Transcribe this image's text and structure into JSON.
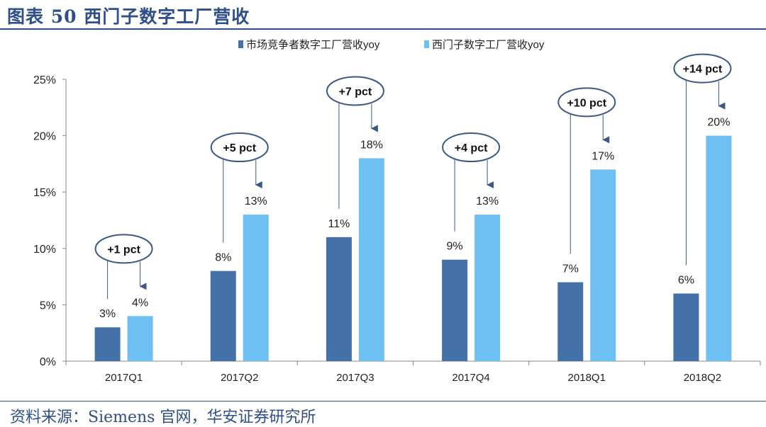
{
  "header": {
    "title": "图表 50  西门子数字工厂营收"
  },
  "footer": {
    "source": "资料来源：Siemens 官网，华安证券研究所"
  },
  "colors": {
    "series1": "#4472a8",
    "series2": "#6fc0f2",
    "annotation": "#3a5a85",
    "title": "#2e4f8a"
  },
  "chart_data": {
    "type": "bar",
    "categories": [
      "2017Q1",
      "2017Q2",
      "2017Q3",
      "2017Q4",
      "2018Q1",
      "2018Q2"
    ],
    "series": [
      {
        "name": "市场竞争者数字工厂营收yoy",
        "values": [
          3,
          8,
          11,
          9,
          7,
          6
        ],
        "labels": [
          "3%",
          "8%",
          "11%",
          "9%",
          "7%",
          "6%"
        ]
      },
      {
        "name": "西门子数字工厂营收yoy",
        "values": [
          4,
          13,
          18,
          13,
          17,
          20
        ],
        "labels": [
          "4%",
          "13%",
          "18%",
          "13%",
          "17%",
          "20%"
        ]
      }
    ],
    "ylim": [
      0,
      25
    ],
    "yticks": [
      0,
      5,
      10,
      15,
      20,
      25
    ],
    "ytick_labels": [
      "0%",
      "5%",
      "10%",
      "15%",
      "20%",
      "25%"
    ],
    "legend_position": "top",
    "grid": false,
    "annotations": [
      {
        "category": "2017Q1",
        "text": "+1 pct"
      },
      {
        "category": "2017Q2",
        "text": "+5 pct"
      },
      {
        "category": "2017Q3",
        "text": "+7 pct"
      },
      {
        "category": "2017Q4",
        "text": "+4 pct"
      },
      {
        "category": "2018Q1",
        "text": "+10 pct"
      },
      {
        "category": "2018Q2",
        "text": "+14 pct"
      }
    ]
  }
}
